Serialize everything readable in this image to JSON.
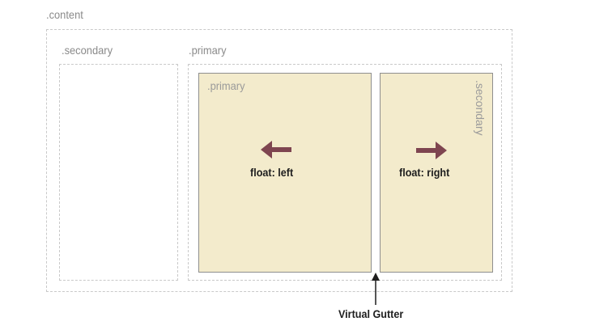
{
  "labels": {
    "content": ".content",
    "outer_secondary": ".secondary",
    "outer_primary": ".primary",
    "inner_primary": ".primary",
    "inner_secondary": ".secondary",
    "float_left": "float: left",
    "float_right": "float: right",
    "virtual_gutter": "Virtual Gutter"
  },
  "colors": {
    "panel_fill": "#f3ebcc",
    "panel_border": "#8f8f8f",
    "dashed_border": "#c9c9c9",
    "arrow_color": "#7e4550",
    "label_gray": "#8a8a8a"
  },
  "icons": {
    "float_left_arrow": "left-arrow-icon",
    "float_right_arrow": "right-arrow-icon",
    "gutter_pointer": "up-arrow-icon"
  }
}
